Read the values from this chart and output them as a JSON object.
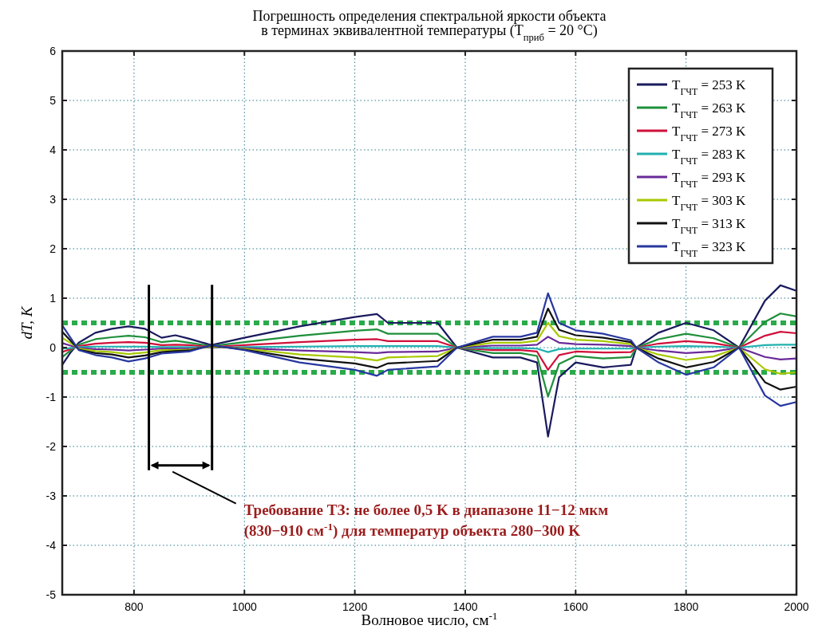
{
  "chart_data": {
    "type": "line",
    "title": "Погрешность определения спектральной яркости объекта\nв терминах эквивалентной температуры (T$_{приб}$ = 20 °C)",
    "xlabel": "Волновое число, см$^{-1}$",
    "ylabel": "dT, K",
    "annotations": [
      "Требование ТЗ: не более 0,5 K в диапазоне 11−12 мкм\n(830−910 см$^{-1}$) для температур объекта 280−300 K"
    ],
    "x": [
      670,
      685,
      700,
      730,
      760,
      790,
      820,
      850,
      875,
      900,
      940,
      1000,
      1100,
      1200,
      1240,
      1260,
      1350,
      1385,
      1450,
      1500,
      1530,
      1550,
      1570,
      1600,
      1650,
      1700,
      1710,
      1750,
      1800,
      1850,
      1896,
      1943,
      1971,
      2000
    ],
    "series": [
      {
        "name": "T$_{ГЧТ}$ = 253 K",
        "color": "#1a1a5e",
        "values": [
          -0.35,
          -0.1,
          0.1,
          0.3,
          0.38,
          0.43,
          0.38,
          0.2,
          0.25,
          0.18,
          0.05,
          0.2,
          0.43,
          0.62,
          0.68,
          0.5,
          0.5,
          0,
          -0.2,
          -0.2,
          -0.3,
          -1.8,
          -0.6,
          -0.3,
          -0.4,
          -0.35,
          0,
          0.3,
          0.5,
          0.35,
          0,
          0.95,
          1.26,
          1.15
        ]
      },
      {
        "name": "T$_{ГЧТ}$ = 263 K",
        "color": "#1f8f3a",
        "values": [
          -0.19,
          -0.06,
          0.06,
          0.17,
          0.21,
          0.24,
          0.21,
          0.11,
          0.14,
          0.1,
          0.03,
          0.11,
          0.24,
          0.34,
          0.37,
          0.28,
          0.28,
          0,
          -0.11,
          -0.11,
          -0.17,
          -0.99,
          -0.33,
          -0.17,
          -0.22,
          -0.19,
          0,
          0.17,
          0.28,
          0.19,
          0,
          0.52,
          0.69,
          0.63
        ]
      },
      {
        "name": "T$_{ГЧТ}$ = 273 K",
        "color": "#d0103a",
        "values": [
          -0.09,
          -0.03,
          0.03,
          0.08,
          0.1,
          0.11,
          0.1,
          0.05,
          0.06,
          0.05,
          0.01,
          0.05,
          0.11,
          0.16,
          0.17,
          0.13,
          0.13,
          0,
          -0.05,
          -0.05,
          -0.08,
          -0.45,
          -0.15,
          -0.08,
          -0.1,
          -0.09,
          0,
          0.08,
          0.13,
          0.09,
          0,
          0.24,
          0.32,
          0.29
        ]
      },
      {
        "name": "T$_{ГЧТ}$ = 283 K",
        "color": "#20b0b0",
        "values": [
          -0.02,
          -0.01,
          0.01,
          0.02,
          0.02,
          0.02,
          0.02,
          0.01,
          0.01,
          0.01,
          0,
          0.01,
          0.02,
          0.03,
          0.03,
          0.03,
          0.03,
          0,
          -0.01,
          -0.01,
          -0.02,
          -0.09,
          -0.03,
          -0.02,
          -0.02,
          -0.02,
          0,
          0.02,
          0.03,
          0.02,
          0,
          0.05,
          0.06,
          0.06
        ]
      },
      {
        "name": "T$_{ГЧТ}$ = 293 K",
        "color": "#6a2a9a",
        "values": [
          0.09,
          0.04,
          -0.01,
          -0.03,
          -0.04,
          -0.06,
          -0.04,
          -0.02,
          -0.02,
          -0.02,
          0.01,
          -0.01,
          -0.06,
          -0.09,
          -0.11,
          -0.09,
          -0.08,
          0,
          0.04,
          0.04,
          0.06,
          0.22,
          0.1,
          0.07,
          0.06,
          0.03,
          0,
          -0.06,
          -0.11,
          -0.08,
          0,
          -0.19,
          -0.24,
          -0.22
        ]
      },
      {
        "name": "T$_{ГЧТ}$ = 303 K",
        "color": "#a8c800",
        "values": [
          0.2,
          0.09,
          -0.02,
          -0.07,
          -0.09,
          -0.13,
          -0.1,
          -0.05,
          -0.05,
          -0.04,
          0.02,
          -0.02,
          -0.14,
          -0.2,
          -0.26,
          -0.2,
          -0.17,
          0,
          0.1,
          0.1,
          0.14,
          0.5,
          0.23,
          0.16,
          0.13,
          0.07,
          0,
          -0.14,
          -0.25,
          -0.18,
          0,
          -0.44,
          -0.53,
          -0.5
        ]
      },
      {
        "name": "T$_{ГЧТ}$ = 313 K",
        "color": "#111111",
        "values": [
          0.32,
          0.14,
          -0.04,
          -0.11,
          -0.14,
          -0.2,
          -0.16,
          -0.09,
          -0.07,
          -0.06,
          0.04,
          -0.04,
          -0.22,
          -0.32,
          -0.41,
          -0.32,
          -0.27,
          0,
          0.16,
          0.16,
          0.22,
          0.79,
          0.36,
          0.25,
          0.2,
          0.11,
          0,
          -0.22,
          -0.4,
          -0.29,
          0,
          -0.7,
          -0.85,
          -0.79
        ]
      },
      {
        "name": "T$_{ГЧТ}$ = 323 K",
        "color": "#2838a0",
        "values": [
          0.45,
          0.2,
          -0.05,
          -0.15,
          -0.2,
          -0.28,
          -0.22,
          -0.12,
          -0.1,
          -0.08,
          0.05,
          -0.05,
          -0.3,
          -0.45,
          -0.57,
          -0.45,
          -0.38,
          0,
          0.22,
          0.22,
          0.3,
          1.1,
          0.5,
          0.35,
          0.28,
          0.15,
          0,
          -0.3,
          -0.55,
          -0.4,
          0,
          -0.97,
          -1.18,
          -1.1
        ]
      }
    ],
    "ref_lines": [
      {
        "axis": "y",
        "value": 0.5,
        "color": "#2aaa4a",
        "line_style": "dashed"
      },
      {
        "axis": "y",
        "value": -0.5,
        "color": "#2aaa4a",
        "line_style": "dashed"
      }
    ],
    "xlim": [
      670,
      2000
    ],
    "xticks": [
      800,
      1000,
      1200,
      1400,
      1600,
      1800,
      2000
    ],
    "ylim": [
      -5,
      6
    ],
    "yticks": [
      -5,
      -4,
      -3,
      -2,
      -1,
      0,
      1,
      2,
      3,
      4,
      5,
      6
    ],
    "grid": true,
    "legend": "top right",
    "line_style": "solid",
    "marker": "none"
  }
}
